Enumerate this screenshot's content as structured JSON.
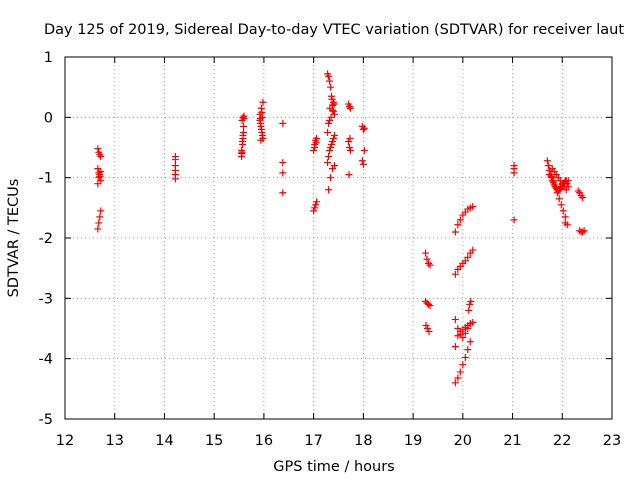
{
  "chart_data": {
    "type": "scatter",
    "title": "Day 125 of 2019, Sidereal Day-to-day VTEC variation (SDTVAR) for receiver laut",
    "xlabel": "GPS time / hours",
    "ylabel": "SDTVAR / TECUs",
    "xlim": [
      12,
      23
    ],
    "ylim": [
      -5,
      1
    ],
    "xticks": [
      "12",
      "13",
      "14",
      "15",
      "16",
      "17",
      "18",
      "19",
      "20",
      "21",
      "22",
      "23"
    ],
    "yticks": [
      "1",
      "0",
      "-1",
      "-2",
      "-3",
      "-4",
      "-5"
    ],
    "grid": true,
    "marker": "plus",
    "color": "#ff0000",
    "series": [
      {
        "x": [
          12.66,
          12.68,
          12.7,
          12.72,
          12.66,
          12.68,
          12.7,
          12.72,
          12.66,
          12.68,
          12.7,
          12.72,
          12.66,
          12.68,
          12.7,
          12.72,
          14.22,
          14.22,
          14.22,
          14.22,
          14.22,
          14.22,
          15.55,
          15.56,
          15.57,
          15.58,
          15.59,
          15.6,
          15.55,
          15.57,
          15.59,
          15.56,
          15.58,
          15.6,
          15.55,
          15.58,
          15.92,
          15.93,
          15.94,
          15.95,
          15.96,
          15.97,
          15.98,
          15.92,
          15.95,
          15.98,
          15.93,
          15.96,
          15.94,
          15.97,
          16.38,
          16.38,
          16.38,
          16.38,
          17.0,
          17.02,
          17.04,
          17.06,
          17.0,
          17.02,
          17.04,
          17.06,
          17.02,
          17.05,
          17.28,
          17.3,
          17.32,
          17.34,
          17.36,
          17.38,
          17.4,
          17.42,
          17.28,
          17.3,
          17.32,
          17.34,
          17.36,
          17.38,
          17.4,
          17.42,
          17.3,
          17.34,
          17.38,
          17.42,
          17.3,
          17.32,
          17.35,
          17.38,
          17.4,
          17.28,
          17.33,
          17.37,
          17.41,
          17.7,
          17.72,
          17.74,
          17.7,
          17.72,
          17.74,
          17.71,
          17.73,
          17.98,
          18.0,
          18.02,
          17.98,
          18.0,
          18.02,
          19.25,
          19.28,
          19.31,
          19.34,
          19.25,
          19.28,
          19.31,
          19.34,
          19.26,
          19.29,
          19.32,
          19.85,
          19.9,
          19.95,
          20.0,
          20.05,
          20.1,
          20.15,
          19.85,
          19.9,
          19.95,
          20.0,
          20.05,
          20.1,
          20.15,
          19.85,
          19.9,
          19.95,
          20.0,
          20.05,
          20.1,
          20.15,
          20.2,
          19.85,
          19.9,
          19.95,
          20.0,
          20.05,
          20.1,
          20.15,
          20.2,
          19.85,
          19.9,
          19.95,
          20.0,
          20.05,
          20.1,
          20.15,
          20.2,
          20.12,
          20.14,
          20.16,
          21.03,
          21.03,
          21.03,
          21.03,
          21.7,
          21.72,
          21.74,
          21.76,
          21.78,
          21.8,
          21.82,
          21.84,
          21.86,
          21.88,
          21.9,
          21.92,
          21.94,
          21.96,
          21.98,
          22.0,
          22.02,
          22.04,
          22.06,
          22.08,
          22.1,
          21.74,
          21.78,
          21.82,
          21.86,
          21.9,
          21.94,
          21.98,
          22.02,
          22.06,
          21.8,
          21.84,
          21.88,
          21.92,
          21.96,
          22.0,
          22.04,
          22.08,
          22.12,
          22.32,
          22.35,
          22.38,
          22.41,
          22.35,
          22.38,
          22.41,
          22.44,
          22.12,
          22.06,
          22.1
        ],
        "y": [
          -0.52,
          -0.58,
          -0.62,
          -0.65,
          -0.85,
          -0.92,
          -0.98,
          -1.05,
          -1.1,
          -1.0,
          -0.95,
          -0.9,
          -1.85,
          -1.75,
          -1.65,
          -1.55,
          -0.65,
          -0.7,
          -0.8,
          -0.88,
          -0.95,
          -1.02,
          -0.65,
          -0.58,
          -0.45,
          -0.3,
          -0.15,
          -0.02,
          -0.55,
          -0.4,
          -0.25,
          -0.05,
          0.0,
          0.02,
          -0.6,
          -0.35,
          -0.05,
          -0.1,
          -0.15,
          -0.2,
          -0.25,
          -0.3,
          -0.35,
          0.05,
          0.15,
          0.25,
          -0.02,
          0.08,
          -0.38,
          0.0,
          -0.1,
          -0.75,
          -0.92,
          -1.25,
          -1.55,
          -1.5,
          -1.45,
          -1.4,
          -0.55,
          -0.45,
          -0.38,
          -0.35,
          -0.5,
          -0.42,
          0.72,
          0.68,
          0.6,
          0.5,
          0.35,
          0.2,
          0.1,
          0.05,
          -0.75,
          -0.65,
          -0.55,
          -0.5,
          -0.45,
          -0.4,
          -0.35,
          -0.3,
          -1.2,
          -1.0,
          -0.85,
          -0.8,
          -0.1,
          -0.05,
          0.0,
          0.12,
          0.25,
          -0.25,
          0.15,
          0.3,
          0.22,
          0.22,
          0.18,
          0.15,
          -0.4,
          -0.5,
          -0.55,
          -0.95,
          -0.35,
          -0.15,
          -0.2,
          -0.55,
          -0.72,
          -0.78,
          -0.18,
          -2.25,
          -2.35,
          -2.42,
          -2.45,
          -3.05,
          -3.08,
          -3.1,
          -3.12,
          -3.45,
          -3.5,
          -3.55,
          -4.4,
          -4.32,
          -4.22,
          -4.1,
          -3.98,
          -3.85,
          -3.72,
          -3.35,
          -3.5,
          -3.6,
          -3.65,
          -3.58,
          -3.5,
          -3.42,
          -2.6,
          -2.52,
          -2.47,
          -2.42,
          -2.38,
          -2.32,
          -2.25,
          -2.2,
          -1.9,
          -1.78,
          -1.7,
          -1.62,
          -1.57,
          -1.52,
          -1.5,
          -1.48,
          -3.8,
          -3.62,
          -3.55,
          -3.52,
          -3.48,
          -3.45,
          -3.42,
          -3.4,
          -3.2,
          -3.1,
          -3.05,
          -0.8,
          -0.85,
          -0.92,
          -1.7,
          -0.72,
          -0.8,
          -0.88,
          -0.95,
          -1.0,
          -1.05,
          -1.08,
          -1.12,
          -1.15,
          -1.18,
          -1.2,
          -1.22,
          -1.2,
          -1.18,
          -1.15,
          -1.12,
          -1.1,
          -1.08,
          -1.05,
          -1.05,
          -1.1,
          -0.95,
          -0.98,
          -1.05,
          -1.15,
          -1.25,
          -1.35,
          -1.45,
          -1.55,
          -1.65,
          -0.85,
          -0.9,
          -0.95,
          -1.0,
          -1.05,
          -1.1,
          -1.15,
          -1.2,
          -1.15,
          -1.22,
          -1.25,
          -1.3,
          -1.33,
          -1.88,
          -1.9,
          -1.9,
          -1.88,
          -1.05,
          -1.75,
          -1.78
        ]
      }
    ]
  }
}
